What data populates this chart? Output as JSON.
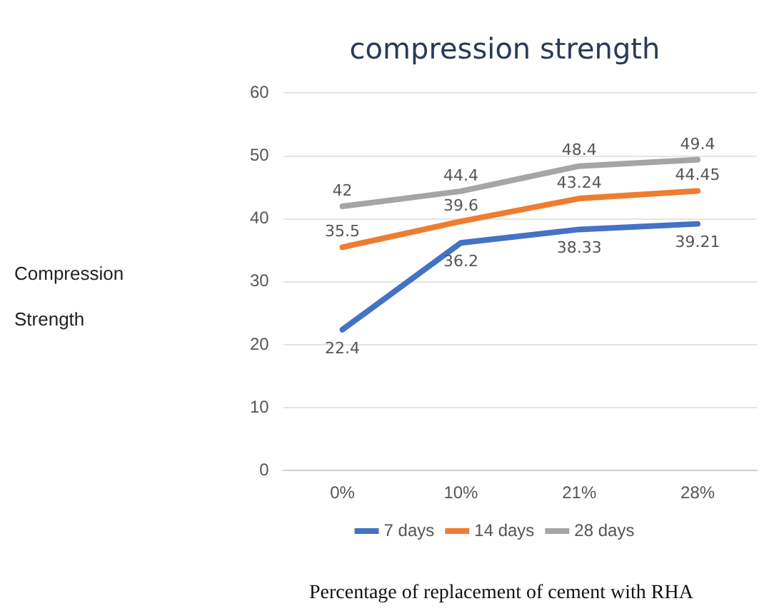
{
  "chart_data": {
    "type": "line",
    "title": "compression strength",
    "ylabel": "Compression Strength",
    "xlabel": "Percentage of replacement of cement with RHA",
    "categories": [
      "0%",
      "10%",
      "21%",
      "28%"
    ],
    "series": [
      {
        "name": "7 days",
        "color": "#4472c4",
        "values": [
          22.4,
          36.2,
          38.33,
          39.21
        ]
      },
      {
        "name": "14 days",
        "color": "#ed7d31",
        "values": [
          35.5,
          39.6,
          43.24,
          44.45
        ]
      },
      {
        "name": "28 days",
        "color": "#a5a5a5",
        "values": [
          42,
          44.4,
          48.4,
          49.4
        ]
      }
    ],
    "ylim": [
      0,
      60
    ],
    "yticks": [
      0,
      10,
      20,
      30,
      40,
      50,
      60
    ],
    "grid": "y",
    "legend": "bottom",
    "data_labels": true,
    "marker": "none",
    "line_style": "solid"
  }
}
